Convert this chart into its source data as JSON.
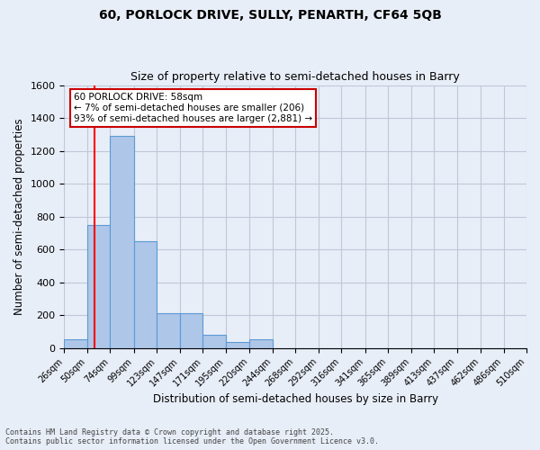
{
  "title1": "60, PORLOCK DRIVE, SULLY, PENARTH, CF64 5QB",
  "title2": "Size of property relative to semi-detached houses in Barry",
  "xlabel": "Distribution of semi-detached houses by size in Barry",
  "ylabel": "Number of semi-detached properties",
  "footer": "Contains HM Land Registry data © Crown copyright and database right 2025.\nContains public sector information licensed under the Open Government Licence v3.0.",
  "bin_labels": [
    "26sqm",
    "50sqm",
    "74sqm",
    "99sqm",
    "123sqm",
    "147sqm",
    "171sqm",
    "195sqm",
    "220sqm",
    "244sqm",
    "268sqm",
    "292sqm",
    "316sqm",
    "341sqm",
    "365sqm",
    "389sqm",
    "413sqm",
    "437sqm",
    "462sqm",
    "486sqm",
    "510sqm"
  ],
  "bar_values": [
    55,
    750,
    1290,
    650,
    215,
    215,
    80,
    40,
    55,
    0,
    0,
    0,
    0,
    0,
    0,
    0,
    0,
    0,
    0,
    0
  ],
  "bar_color": "#aec6e8",
  "bar_edge_color": "#5b9bd5",
  "grid_color": "#c0c8d8",
  "background_color": "#e8eef8",
  "annotation_box_color": "#ffffff",
  "annotation_border_color": "#cc0000",
  "annotation_text_line1": "60 PORLOCK DRIVE: 58sqm",
  "annotation_text_line2": "← 7% of semi-detached houses are smaller (206)",
  "annotation_text_line3": "93% of semi-detached houses are larger (2,881) →",
  "red_line_x": 58,
  "ylim": [
    0,
    1600
  ],
  "yticks": [
    0,
    200,
    400,
    600,
    800,
    1000,
    1200,
    1400,
    1600
  ],
  "bin_edges": [
    26,
    50,
    74,
    99,
    123,
    147,
    171,
    195,
    220,
    244,
    268,
    292,
    316,
    341,
    365,
    389,
    413,
    437,
    462,
    486,
    510
  ]
}
